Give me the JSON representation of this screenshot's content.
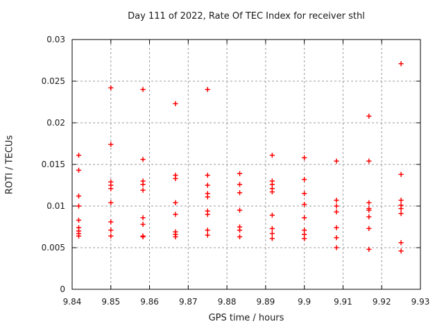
{
  "title": "Day 111 of 2022, Rate Of TEC Index for receiver sthl",
  "chart_data": {
    "type": "scatter",
    "title": "Day 111 of 2022, Rate Of TEC Index for receiver sthl",
    "xlabel": "GPS time / hours",
    "ylabel": "ROTI / TECUs",
    "xlim": [
      9.84,
      9.93
    ],
    "ylim": [
      0,
      0.03
    ],
    "xticks": [
      9.84,
      9.85,
      9.86,
      9.87,
      9.88,
      9.89,
      9.9,
      9.91,
      9.92,
      9.93
    ],
    "xtick_labels": [
      "9.84",
      "9.85",
      "9.86",
      "9.87",
      "9.88",
      "9.89",
      "9.9",
      "9.91",
      "9.92",
      "9.93"
    ],
    "yticks": [
      0,
      0.005,
      0.01,
      0.015,
      0.02,
      0.025,
      0.03
    ],
    "ytick_labels": [
      "0",
      "0.005",
      "0.01",
      "0.015",
      "0.02",
      "0.025",
      "0.03"
    ],
    "grid": true,
    "legend": false,
    "marker": "plus",
    "marker_color": "#ff0000",
    "axis_color": "#000000",
    "grid_color": "#9a9a9a",
    "series": [
      {
        "name": "ROTI",
        "points": [
          [
            9.8417,
            0.0161
          ],
          [
            9.8417,
            0.0143
          ],
          [
            9.8417,
            0.0112
          ],
          [
            9.8417,
            0.01
          ],
          [
            9.8417,
            0.0083
          ],
          [
            9.8417,
            0.0074
          ],
          [
            9.8417,
            0.007
          ],
          [
            9.8417,
            0.0067
          ],
          [
            9.8417,
            0.0064
          ],
          [
            9.85,
            0.0242
          ],
          [
            9.85,
            0.0174
          ],
          [
            9.85,
            0.0129
          ],
          [
            9.85,
            0.0125
          ],
          [
            9.85,
            0.0121
          ],
          [
            9.85,
            0.0104
          ],
          [
            9.85,
            0.0081
          ],
          [
            9.85,
            0.0071
          ],
          [
            9.85,
            0.0064
          ],
          [
            9.8583,
            0.024
          ],
          [
            9.8583,
            0.0156
          ],
          [
            9.8583,
            0.013
          ],
          [
            9.8583,
            0.0126
          ],
          [
            9.8583,
            0.0119
          ],
          [
            9.8583,
            0.0086
          ],
          [
            9.8583,
            0.0078
          ],
          [
            9.8583,
            0.0064
          ],
          [
            9.8583,
            0.0063
          ],
          [
            9.8667,
            0.0223
          ],
          [
            9.8667,
            0.0137
          ],
          [
            9.8667,
            0.0133
          ],
          [
            9.8667,
            0.0104
          ],
          [
            9.8667,
            0.009
          ],
          [
            9.8667,
            0.0069
          ],
          [
            9.8667,
            0.0066
          ],
          [
            9.8667,
            0.0063
          ],
          [
            9.875,
            0.024
          ],
          [
            9.875,
            0.0137
          ],
          [
            9.875,
            0.0125
          ],
          [
            9.875,
            0.0115
          ],
          [
            9.875,
            0.0111
          ],
          [
            9.875,
            0.0094
          ],
          [
            9.875,
            0.009
          ],
          [
            9.875,
            0.0071
          ],
          [
            9.875,
            0.0065
          ],
          [
            9.8833,
            0.0139
          ],
          [
            9.8833,
            0.0126
          ],
          [
            9.8833,
            0.0116
          ],
          [
            9.8833,
            0.0095
          ],
          [
            9.8833,
            0.0075
          ],
          [
            9.8833,
            0.0071
          ],
          [
            9.8833,
            0.0063
          ],
          [
            9.8917,
            0.0161
          ],
          [
            9.8917,
            0.013
          ],
          [
            9.8917,
            0.0126
          ],
          [
            9.8917,
            0.0121
          ],
          [
            9.8917,
            0.0117
          ],
          [
            9.8917,
            0.0089
          ],
          [
            9.8917,
            0.0073
          ],
          [
            9.8917,
            0.0067
          ],
          [
            9.8917,
            0.0061
          ],
          [
            9.9,
            0.0158
          ],
          [
            9.9,
            0.0132
          ],
          [
            9.9,
            0.0115
          ],
          [
            9.9,
            0.0102
          ],
          [
            9.9,
            0.0086
          ],
          [
            9.9,
            0.0071
          ],
          [
            9.9,
            0.0066
          ],
          [
            9.9,
            0.0061
          ],
          [
            9.9083,
            0.0154
          ],
          [
            9.9083,
            0.0107
          ],
          [
            9.9083,
            0.01
          ],
          [
            9.9083,
            0.0093
          ],
          [
            9.9083,
            0.0074
          ],
          [
            9.9083,
            0.0062
          ],
          [
            9.9083,
            0.005
          ],
          [
            9.9167,
            0.0208
          ],
          [
            9.9167,
            0.0154
          ],
          [
            9.9167,
            0.0104
          ],
          [
            9.9167,
            0.0097
          ],
          [
            9.9167,
            0.0095
          ],
          [
            9.9167,
            0.0087
          ],
          [
            9.9167,
            0.0073
          ],
          [
            9.9167,
            0.0048
          ],
          [
            9.925,
            0.0271
          ],
          [
            9.925,
            0.0138
          ],
          [
            9.925,
            0.0107
          ],
          [
            9.925,
            0.0101
          ],
          [
            9.925,
            0.0097
          ],
          [
            9.925,
            0.0091
          ],
          [
            9.925,
            0.0056
          ],
          [
            9.925,
            0.0046
          ]
        ]
      }
    ]
  }
}
